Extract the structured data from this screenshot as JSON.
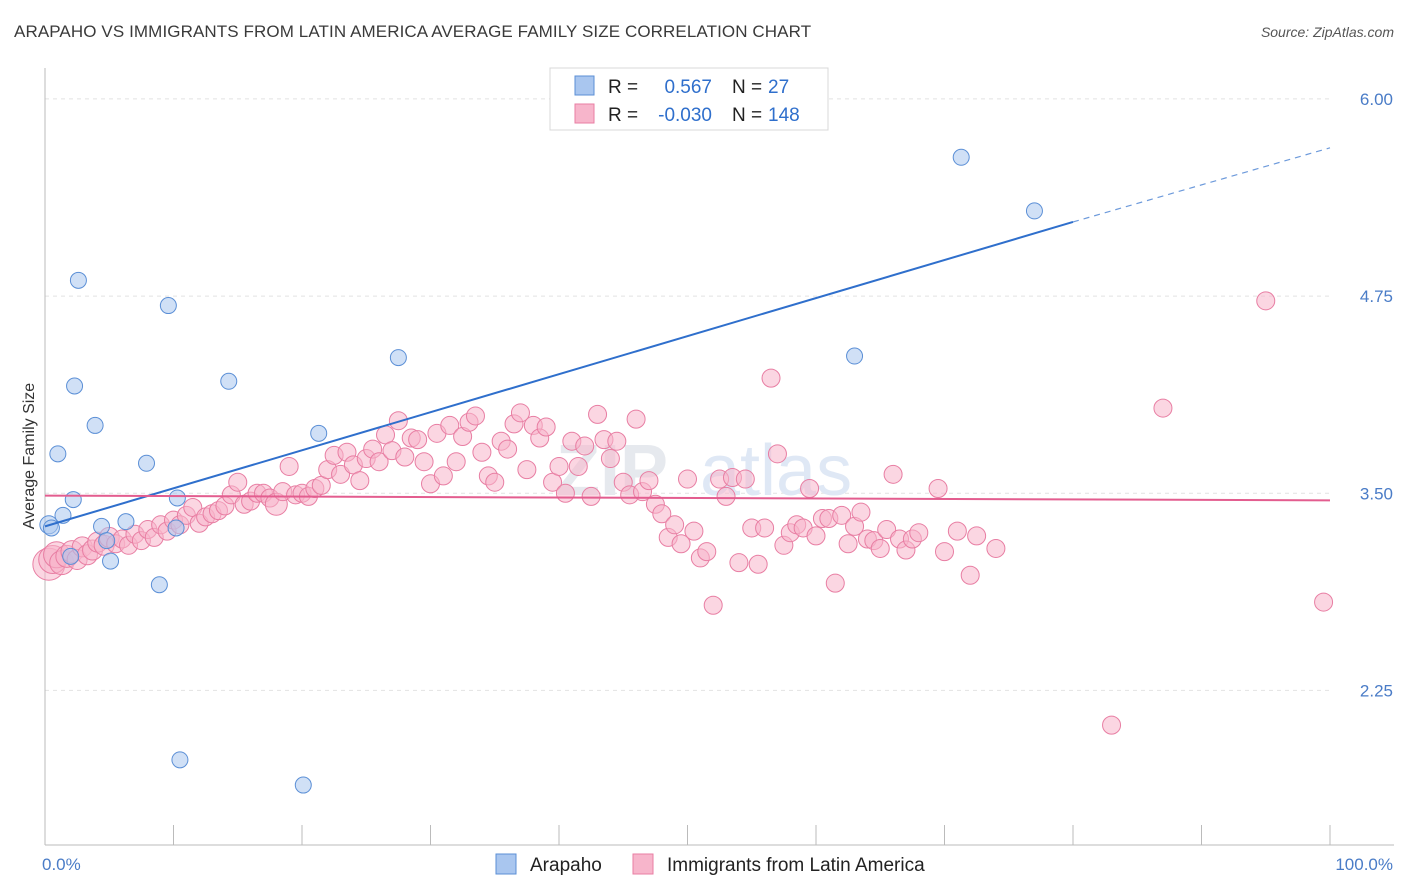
{
  "title": "ARAPAHO VS IMMIGRANTS FROM LATIN AMERICA AVERAGE FAMILY SIZE CORRELATION CHART",
  "source": "Source: ZipAtlas.com",
  "watermark": {
    "zip": "ZIP",
    "atlas": "atlas"
  },
  "chart_data": {
    "type": "scatter",
    "title": "ARAPAHO VS IMMIGRANTS FROM LATIN AMERICA AVERAGE FAMILY SIZE CORRELATION CHART",
    "ylabel": "Average Family Size",
    "xlabel": "",
    "xlim": [
      0,
      100
    ],
    "ylim": [
      1.27,
      6.12
    ],
    "x_tick_labels": [
      "0.0%",
      "100.0%"
    ],
    "y_ticks": [
      6.0,
      4.75,
      3.5,
      2.25
    ],
    "y_tick_labels": [
      "6.00",
      "4.75",
      "3.50",
      "2.25"
    ],
    "grid": true,
    "legend_position": "top-center",
    "legend_bottom": [
      {
        "name": "Arapaho",
        "color": "#a9c6ef"
      },
      {
        "name": "Immigrants from Latin America",
        "color": "#f7b5cb"
      }
    ],
    "stats": [
      {
        "r_label": "R =",
        "r_value": "0.567",
        "n_label": "N =",
        "n_value": "27",
        "color": "#a9c6ef"
      },
      {
        "r_label": "R =",
        "r_value": "-0.030",
        "n_label": "N =",
        "n_value": "148",
        "color": "#f7b5cb"
      }
    ],
    "series": [
      {
        "name": "Arapaho",
        "color": "#a9c6ef",
        "stroke": "#5b8fd6",
        "trend": {
          "x": [
            0,
            80
          ],
          "y": [
            3.29,
            5.22
          ],
          "dash_to": [
            100,
            5.69
          ],
          "color": "#2f6fcc"
        },
        "points": [
          [
            0.3,
            3.3,
            9
          ],
          [
            0.5,
            3.28,
            8
          ],
          [
            1.0,
            3.75,
            8
          ],
          [
            1.4,
            3.36,
            8
          ],
          [
            2.0,
            3.1,
            8
          ],
          [
            2.2,
            3.46,
            8
          ],
          [
            2.3,
            4.18,
            8
          ],
          [
            2.6,
            4.85,
            8
          ],
          [
            3.9,
            3.93,
            8
          ],
          [
            4.4,
            3.29,
            8
          ],
          [
            4.8,
            3.2,
            8
          ],
          [
            5.1,
            3.07,
            8
          ],
          [
            6.3,
            3.32,
            8
          ],
          [
            7.9,
            3.69,
            8
          ],
          [
            8.9,
            2.92,
            8
          ],
          [
            9.6,
            4.69,
            8
          ],
          [
            10.2,
            3.28,
            8
          ],
          [
            10.3,
            3.47,
            8
          ],
          [
            10.5,
            1.81,
            8
          ],
          [
            14.3,
            4.21,
            8
          ],
          [
            20.1,
            1.65,
            8
          ],
          [
            21.3,
            3.88,
            8
          ],
          [
            27.5,
            4.36,
            8
          ],
          [
            63.0,
            4.37,
            8
          ],
          [
            71.3,
            5.63,
            8
          ],
          [
            77.0,
            5.29,
            8
          ]
        ]
      },
      {
        "name": "Immigrants from Latin America",
        "color": "#f7b5cb",
        "stroke": "#e87ea3",
        "trend": {
          "x": [
            0,
            100
          ],
          "y": [
            3.485,
            3.455
          ],
          "color": "#e35d8f"
        },
        "points": [
          [
            0.3,
            3.05,
            16
          ],
          [
            0.6,
            3.08,
            14
          ],
          [
            0.9,
            3.11,
            13
          ],
          [
            1.3,
            3.06,
            12
          ],
          [
            1.7,
            3.1,
            11
          ],
          [
            2.1,
            3.13,
            11
          ],
          [
            2.5,
            3.08,
            10
          ],
          [
            2.9,
            3.16,
            10
          ],
          [
            3.3,
            3.11,
            10
          ],
          [
            3.7,
            3.14,
            10
          ],
          [
            4.1,
            3.19,
            10
          ],
          [
            4.6,
            3.17,
            10
          ],
          [
            5.0,
            3.22,
            10
          ],
          [
            5.5,
            3.18,
            9
          ],
          [
            6.0,
            3.21,
            9
          ],
          [
            6.5,
            3.17,
            9
          ],
          [
            7.0,
            3.24,
            9
          ],
          [
            7.5,
            3.2,
            9
          ],
          [
            8.0,
            3.27,
            9
          ],
          [
            8.5,
            3.22,
            9
          ],
          [
            9.0,
            3.3,
            9
          ],
          [
            9.5,
            3.26,
            9
          ],
          [
            10.0,
            3.33,
            9
          ],
          [
            10.5,
            3.3,
            9
          ],
          [
            11.0,
            3.36,
            9
          ],
          [
            11.5,
            3.41,
            9
          ],
          [
            12.0,
            3.31,
            9
          ],
          [
            12.5,
            3.35,
            9
          ],
          [
            13.0,
            3.37,
            9
          ],
          [
            13.5,
            3.39,
            9
          ],
          [
            14.0,
            3.42,
            9
          ],
          [
            14.5,
            3.49,
            9
          ],
          [
            15.0,
            3.57,
            9
          ],
          [
            15.5,
            3.43,
            9
          ],
          [
            16.0,
            3.45,
            9
          ],
          [
            16.5,
            3.5,
            9
          ],
          [
            17.0,
            3.5,
            9
          ],
          [
            17.5,
            3.47,
            9
          ],
          [
            18.0,
            3.43,
            11
          ],
          [
            18.5,
            3.51,
            9
          ],
          [
            19.0,
            3.67,
            9
          ],
          [
            19.5,
            3.49,
            9
          ],
          [
            20.0,
            3.5,
            9
          ],
          [
            20.5,
            3.48,
            9
          ],
          [
            21.0,
            3.53,
            9
          ],
          [
            21.5,
            3.55,
            9
          ],
          [
            22.0,
            3.65,
            9
          ],
          [
            22.5,
            3.74,
            9
          ],
          [
            23.0,
            3.62,
            9
          ],
          [
            23.5,
            3.76,
            9
          ],
          [
            24.0,
            3.68,
            9
          ],
          [
            24.5,
            3.58,
            9
          ],
          [
            25.0,
            3.72,
            9
          ],
          [
            25.5,
            3.78,
            9
          ],
          [
            26.0,
            3.7,
            9
          ],
          [
            26.5,
            3.87,
            9
          ],
          [
            27.0,
            3.77,
            9
          ],
          [
            27.5,
            3.96,
            9
          ],
          [
            28.0,
            3.73,
            9
          ],
          [
            28.5,
            3.85,
            9
          ],
          [
            29.0,
            3.84,
            9
          ],
          [
            29.5,
            3.7,
            9
          ],
          [
            30.0,
            3.56,
            9
          ],
          [
            30.5,
            3.88,
            9
          ],
          [
            31.0,
            3.61,
            9
          ],
          [
            31.5,
            3.93,
            9
          ],
          [
            32.0,
            3.7,
            9
          ],
          [
            32.5,
            3.86,
            9
          ],
          [
            33.0,
            3.95,
            9
          ],
          [
            33.5,
            3.99,
            9
          ],
          [
            34.0,
            3.76,
            9
          ],
          [
            34.5,
            3.61,
            9
          ],
          [
            35.0,
            3.57,
            9
          ],
          [
            35.5,
            3.83,
            9
          ],
          [
            36.0,
            3.78,
            9
          ],
          [
            36.5,
            3.94,
            9
          ],
          [
            37.0,
            4.01,
            9
          ],
          [
            37.5,
            3.65,
            9
          ],
          [
            38.0,
            3.93,
            9
          ],
          [
            38.5,
            3.85,
            9
          ],
          [
            39.0,
            3.92,
            9
          ],
          [
            39.5,
            3.57,
            9
          ],
          [
            40.0,
            3.67,
            9
          ],
          [
            40.5,
            3.5,
            9
          ],
          [
            41.0,
            3.83,
            9
          ],
          [
            41.5,
            3.67,
            9
          ],
          [
            42.0,
            3.8,
            9
          ],
          [
            42.5,
            3.48,
            9
          ],
          [
            43.0,
            4.0,
            9
          ],
          [
            43.5,
            3.84,
            9
          ],
          [
            44.0,
            3.72,
            9
          ],
          [
            44.5,
            3.83,
            9
          ],
          [
            45.0,
            3.57,
            9
          ],
          [
            45.5,
            3.49,
            9
          ],
          [
            46.0,
            3.97,
            9
          ],
          [
            46.5,
            3.51,
            9
          ],
          [
            47.0,
            3.58,
            9
          ],
          [
            47.5,
            3.43,
            9
          ],
          [
            48.0,
            3.37,
            9
          ],
          [
            48.5,
            3.22,
            9
          ],
          [
            49.0,
            3.3,
            9
          ],
          [
            49.5,
            3.18,
            9
          ],
          [
            50.0,
            3.59,
            9
          ],
          [
            50.5,
            3.26,
            9
          ],
          [
            51.0,
            3.09,
            9
          ],
          [
            51.5,
            3.13,
            9
          ],
          [
            52.0,
            2.79,
            9
          ],
          [
            52.5,
            3.59,
            9
          ],
          [
            53.0,
            3.48,
            9
          ],
          [
            53.5,
            3.6,
            9
          ],
          [
            54.0,
            3.06,
            9
          ],
          [
            54.5,
            3.59,
            9
          ],
          [
            55.0,
            3.28,
            9
          ],
          [
            55.5,
            3.05,
            9
          ],
          [
            56.0,
            3.28,
            9
          ],
          [
            56.5,
            4.23,
            9
          ],
          [
            57.0,
            3.75,
            9
          ],
          [
            57.5,
            3.17,
            9
          ],
          [
            58.0,
            3.25,
            9
          ],
          [
            58.5,
            3.3,
            9
          ],
          [
            59.0,
            3.28,
            9
          ],
          [
            59.5,
            3.53,
            9
          ],
          [
            60.0,
            3.23,
            9
          ],
          [
            60.5,
            3.34,
            9
          ],
          [
            61.0,
            3.34,
            9
          ],
          [
            61.5,
            2.93,
            9
          ],
          [
            62.0,
            3.36,
            9
          ],
          [
            62.5,
            3.18,
            9
          ],
          [
            63.0,
            3.29,
            9
          ],
          [
            63.5,
            3.38,
            9
          ],
          [
            64.0,
            3.21,
            9
          ],
          [
            64.5,
            3.2,
            9
          ],
          [
            65.0,
            3.15,
            9
          ],
          [
            65.5,
            3.27,
            9
          ],
          [
            66.0,
            3.62,
            9
          ],
          [
            66.5,
            3.21,
            9
          ],
          [
            67.0,
            3.14,
            9
          ],
          [
            67.5,
            3.21,
            9
          ],
          [
            68.0,
            3.25,
            9
          ],
          [
            69.5,
            3.53,
            9
          ],
          [
            70.0,
            3.13,
            9
          ],
          [
            71.0,
            3.26,
            9
          ],
          [
            72.0,
            2.98,
            9
          ],
          [
            72.5,
            3.23,
            9
          ],
          [
            74.0,
            3.15,
            9
          ],
          [
            83.0,
            2.03,
            9
          ],
          [
            87.0,
            4.04,
            9
          ],
          [
            95.0,
            4.72,
            9
          ],
          [
            99.5,
            2.81,
            9
          ]
        ]
      }
    ]
  }
}
